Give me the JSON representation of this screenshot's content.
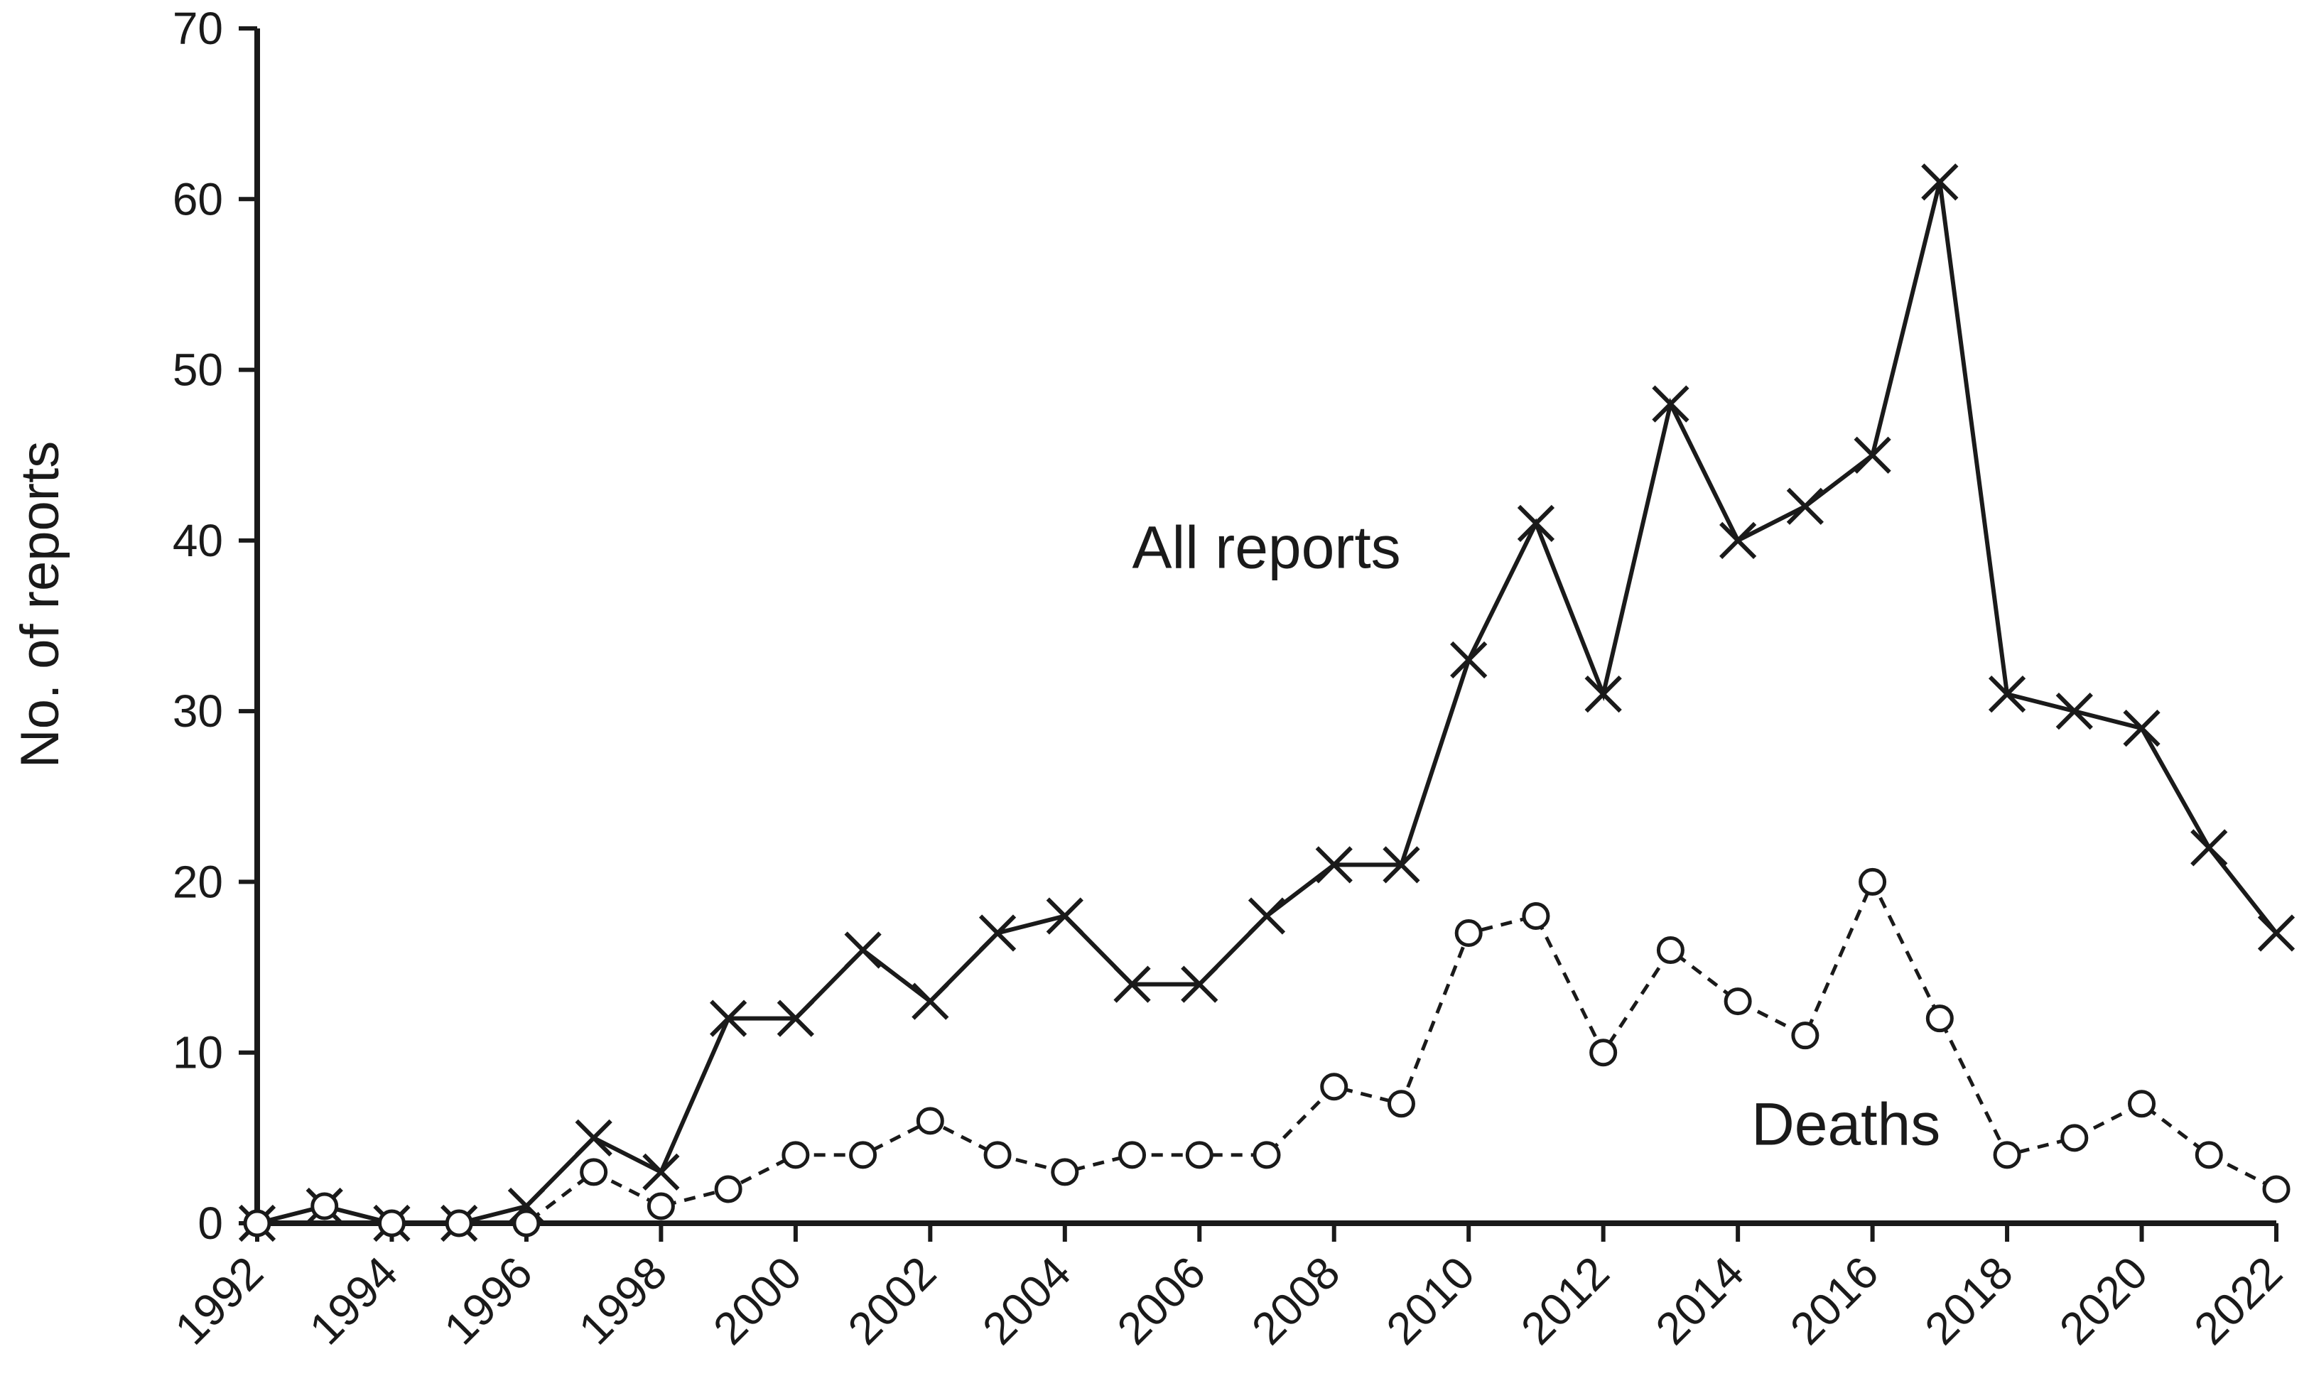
{
  "chart_data": {
    "type": "line",
    "ylabel": "No. of reports",
    "xlabel": "",
    "ylim": [
      0,
      70
    ],
    "yticks": [
      0,
      10,
      20,
      30,
      40,
      50,
      60,
      70
    ],
    "xlim": [
      1992,
      2022
    ],
    "xticks": [
      1992,
      1994,
      1996,
      1998,
      2000,
      2002,
      2004,
      2006,
      2008,
      2010,
      2012,
      2014,
      2016,
      2018,
      2020,
      2022
    ],
    "grid": false,
    "x": [
      1992,
      1993,
      1994,
      1995,
      1996,
      1997,
      1998,
      1999,
      2000,
      2001,
      2002,
      2003,
      2004,
      2005,
      2006,
      2007,
      2008,
      2009,
      2010,
      2011,
      2012,
      2013,
      2014,
      2015,
      2016,
      2017,
      2018,
      2019,
      2020,
      2021,
      2022
    ],
    "series": [
      {
        "name": "All reports",
        "marker": "x",
        "line": "solid",
        "color": "#1a1a1a",
        "values": [
          0,
          1,
          0,
          0,
          1,
          5,
          3,
          12,
          12,
          16,
          13,
          17,
          18,
          14,
          14,
          18,
          21,
          21,
          33,
          41,
          31,
          48,
          40,
          42,
          45,
          61,
          31,
          30,
          29,
          22,
          17
        ]
      },
      {
        "name": "Deaths",
        "marker": "circle",
        "line": "dashed",
        "color": "#1a1a1a",
        "values": [
          0,
          1,
          0,
          0,
          0,
          3,
          1,
          2,
          4,
          4,
          6,
          4,
          3,
          4,
          4,
          4,
          8,
          7,
          17,
          18,
          10,
          16,
          13,
          11,
          20,
          12,
          4,
          5,
          7,
          4,
          2
        ]
      }
    ],
    "annotations": [
      {
        "text": "All reports",
        "series": "All reports"
      },
      {
        "text": "Deaths",
        "series": "Deaths"
      }
    ]
  }
}
